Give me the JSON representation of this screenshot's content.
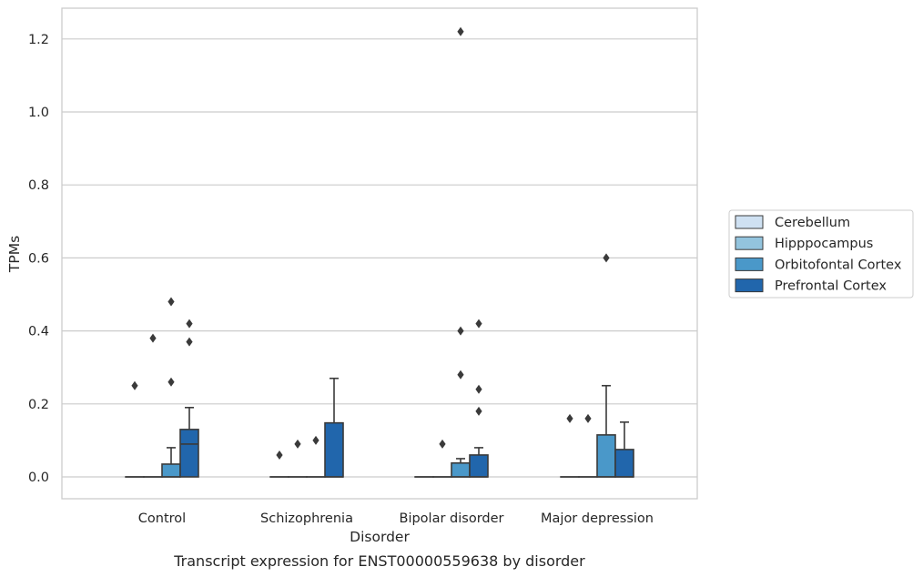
{
  "chart_data": {
    "type": "box",
    "caption": "Transcript expression for ENST00000559638 by disorder",
    "xlabel": "Disorder",
    "ylabel": "TPMs",
    "ylim": [
      -0.06,
      1.285
    ],
    "yticks": [
      0.0,
      0.2,
      0.4,
      0.6,
      0.8,
      1.0,
      1.2
    ],
    "ytick_labels": [
      "0.0",
      "0.2",
      "0.4",
      "0.6",
      "0.8",
      "1.0",
      "1.2"
    ],
    "categories": [
      "Control",
      "Schizophrenia",
      "Bipolar disorder",
      "Major depression"
    ],
    "grid": "horizontal",
    "legend_position": "right",
    "series": [
      {
        "name": "Cerebellum",
        "color": "#cfe1f2",
        "boxes": [
          {
            "q1": 0,
            "median": 0,
            "q3": 0,
            "whislo": 0,
            "whishi": 0,
            "fliers": [
              0.25
            ]
          },
          {
            "q1": 0,
            "median": 0,
            "q3": 0,
            "whislo": 0,
            "whishi": 0,
            "fliers": [
              0.06
            ]
          },
          {
            "q1": 0,
            "median": 0,
            "q3": 0,
            "whislo": 0,
            "whishi": 0,
            "fliers": []
          },
          {
            "q1": 0,
            "median": 0,
            "q3": 0,
            "whislo": 0,
            "whishi": 0,
            "fliers": [
              0.16
            ]
          }
        ]
      },
      {
        "name": "Hipppocampus",
        "color": "#93c4de",
        "boxes": [
          {
            "q1": 0,
            "median": 0,
            "q3": 0,
            "whislo": 0,
            "whishi": 0,
            "fliers": [
              0.38
            ]
          },
          {
            "q1": 0,
            "median": 0,
            "q3": 0,
            "whislo": 0,
            "whishi": 0,
            "fliers": [
              0.09
            ]
          },
          {
            "q1": 0,
            "median": 0,
            "q3": 0,
            "whislo": 0,
            "whishi": 0,
            "fliers": [
              0.09
            ]
          },
          {
            "q1": 0,
            "median": 0,
            "q3": 0,
            "whislo": 0,
            "whishi": 0,
            "fliers": [
              0.16
            ]
          }
        ]
      },
      {
        "name": "Orbitofontal Cortex",
        "color": "#4a98c9",
        "boxes": [
          {
            "q1": 0,
            "median": 0,
            "q3": 0.035,
            "whislo": 0,
            "whishi": 0.08,
            "fliers": [
              0.48,
              0.26
            ]
          },
          {
            "q1": 0,
            "median": 0,
            "q3": 0,
            "whislo": 0,
            "whishi": 0,
            "fliers": [
              0.1
            ]
          },
          {
            "q1": 0,
            "median": 0,
            "q3": 0.038,
            "whislo": 0,
            "whishi": 0.05,
            "fliers": [
              1.22,
              0.4,
              0.28
            ]
          },
          {
            "q1": 0,
            "median": 0,
            "q3": 0.115,
            "whislo": 0,
            "whishi": 0.25,
            "fliers": [
              0.6
            ]
          }
        ]
      },
      {
        "name": "Prefrontal Cortex",
        "color": "#2166ac",
        "boxes": [
          {
            "q1": 0,
            "median": 0.09,
            "q3": 0.13,
            "whislo": 0,
            "whishi": 0.19,
            "fliers": [
              0.42,
              0.37
            ]
          },
          {
            "q1": 0,
            "median": 0,
            "q3": 0.148,
            "whislo": 0,
            "whishi": 0.27,
            "fliers": []
          },
          {
            "q1": 0,
            "median": 0,
            "q3": 0.06,
            "whislo": 0,
            "whishi": 0.08,
            "fliers": [
              0.42,
              0.24,
              0.18
            ]
          },
          {
            "q1": 0,
            "median": 0,
            "q3": 0.075,
            "whislo": 0,
            "whishi": 0.15,
            "fliers": []
          }
        ]
      }
    ]
  }
}
